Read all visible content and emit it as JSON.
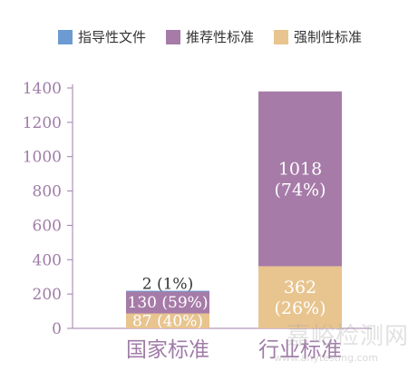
{
  "chart_data": {
    "type": "bar",
    "stacked": true,
    "categories": [
      "国家标准",
      "行业标准"
    ],
    "series": [
      {
        "name": "强制性标准",
        "values": [
          87,
          362
        ],
        "labels": [
          "87 (40%)",
          "362\n(26%)"
        ],
        "color": "#e8c48f"
      },
      {
        "name": "推荐性标准",
        "values": [
          130,
          1018
        ],
        "labels": [
          "130 (59%)",
          "1018\n(74%)"
        ],
        "color": "#a67ba8"
      },
      {
        "name": "指导性文件",
        "values": [
          2,
          0
        ],
        "labels": [
          "2 (1%)",
          ""
        ],
        "color": "#6c9bd2"
      }
    ],
    "legend_order": [
      "指导性文件",
      "推荐性标准",
      "强制性标准"
    ],
    "ylim": [
      0,
      1400
    ],
    "yticks": [
      0,
      200,
      400,
      600,
      800,
      1000,
      1200,
      1400
    ],
    "axis_color": "#a07ca8",
    "category_label_color": "#a07ca8"
  },
  "watermark": {
    "main": "嘉峪检测网",
    "sub": "www.anytesting.com"
  }
}
